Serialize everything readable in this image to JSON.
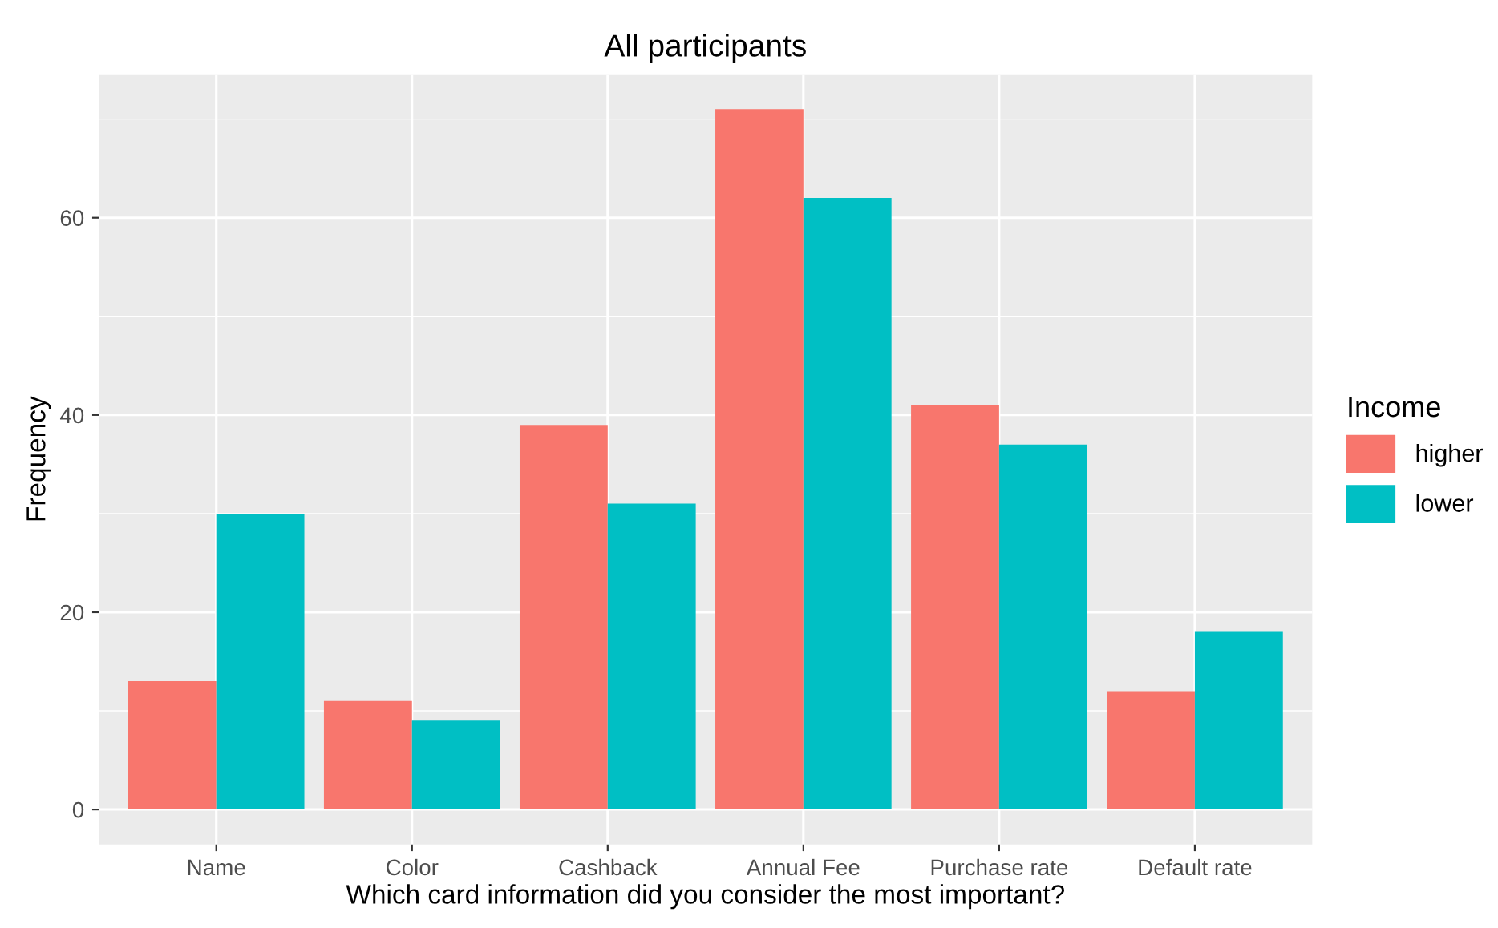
{
  "chart_data": {
    "type": "bar",
    "title": "All participants",
    "xlabel": "Which card information did you consider the most important?",
    "ylabel": "Frequency",
    "legend_title": "Income",
    "categories": [
      "Name",
      "Color",
      "Cashback",
      "Annual Fee",
      "Purchase rate",
      "Default rate"
    ],
    "series": [
      {
        "name": "higher",
        "color": "#f8766d",
        "values": [
          13,
          11,
          39,
          71,
          41,
          12
        ]
      },
      {
        "name": "lower",
        "color": "#00bfc4",
        "values": [
          30,
          9,
          31,
          62,
          37,
          18
        ]
      }
    ],
    "ylim": [
      -3.55,
      74.55
    ],
    "yticks": [
      0,
      20,
      40,
      60
    ],
    "grid": true,
    "legend": "right"
  }
}
